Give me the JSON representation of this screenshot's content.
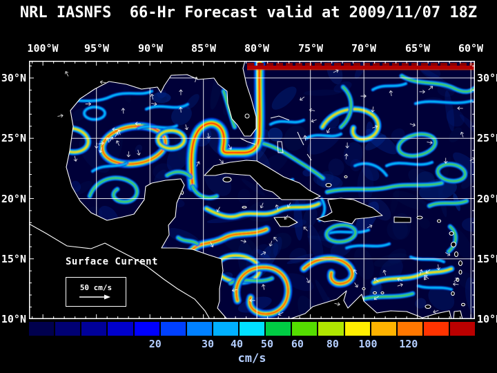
{
  "title": "NRL IASNFS  66-Hr Forecast valid at 2009/11/07 18Z",
  "axes": {
    "lon_labels": [
      "100°W",
      "95°W",
      "90°W",
      "85°W",
      "80°W",
      "75°W",
      "70°W",
      "65°W",
      "60°W"
    ],
    "lat_labels": [
      "30°N",
      "25°N",
      "20°N",
      "15°N",
      "10°N"
    ]
  },
  "annotation": {
    "label": "Surface Current",
    "scale_label": "50 cm/s"
  },
  "colorbar": {
    "unit": "cm/s",
    "tick_labels": [
      "20",
      "30",
      "40",
      "50",
      "60",
      "80",
      "100",
      "120"
    ],
    "tick_positions_pct": [
      28.3,
      40.1,
      46.6,
      53.4,
      60.2,
      68.1,
      76.0,
      85.1
    ],
    "segment_colors": [
      "#00004d",
      "#000073",
      "#000099",
      "#0000cc",
      "#0000ff",
      "#0040ff",
      "#0080ff",
      "#00b0ff",
      "#00e0ff",
      "#00cc44",
      "#55dd00",
      "#b0e600",
      "#ffee00",
      "#ffb300",
      "#ff7700",
      "#ff3300",
      "#bb0000"
    ]
  },
  "map_colors": {
    "ocean": "#000038",
    "land": "#000000",
    "coastline": "#ffffff",
    "grid": "#ffffff"
  }
}
